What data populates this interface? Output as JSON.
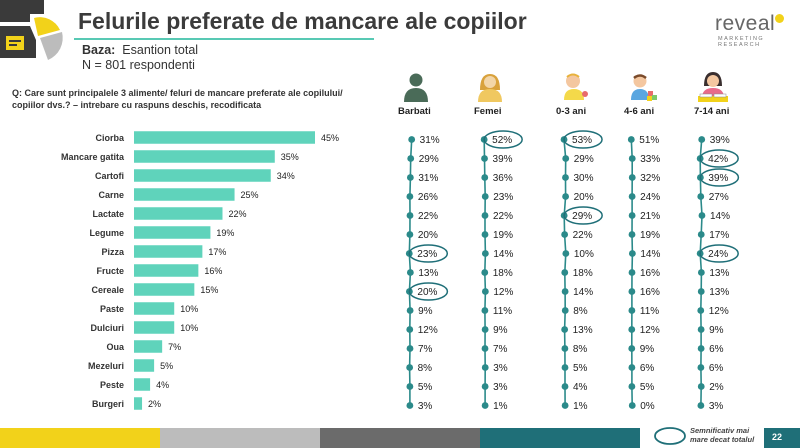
{
  "header": {
    "title": "Felurile preferate de mancare ale copiilor",
    "base_label": "Baza:",
    "base_value": "Esantion total",
    "base_n": "N = 801 respondenti"
  },
  "logo": {
    "word": "reveal",
    "sub1": "MARKETING",
    "sub2": "RESEARCH"
  },
  "question": "Q: Care sunt principalele 3 alimente/ feluri de mancare preferate ale copilului/ copiilor dvs.? – intrebare cu raspuns deschis, recodificata",
  "legend_note": [
    "Semnificativ mai",
    "mare decat totalul"
  ],
  "page_number": "22",
  "colors": {
    "bar": "#5fd3bb",
    "line": "#2b8a8a",
    "highlight": "#1f6f78",
    "footer": [
      "#f2d21a",
      "#bcbcbc",
      "#6b6b6b",
      "#1f6f78"
    ]
  },
  "chart_data": {
    "type": "bar",
    "orientation": "horizontal",
    "value_suffix": "%",
    "categories": [
      "Ciorba",
      "Mancare gatita",
      "Cartofi",
      "Carne",
      "Lactate",
      "Legume",
      "Pizza",
      "Fructe",
      "Cereale",
      "Paste",
      "Dulciuri",
      "Oua",
      "Mezeluri",
      "Peste",
      "Burgeri"
    ],
    "values": [
      45,
      35,
      34,
      25,
      22,
      19,
      17,
      16,
      15,
      10,
      10,
      7,
      5,
      4,
      2
    ],
    "xlim": [
      0,
      50
    ],
    "segments": [
      {
        "name": "Barbati",
        "icon": "man-icon",
        "values": [
          31,
          29,
          31,
          26,
          22,
          20,
          23,
          13,
          20,
          9,
          12,
          7,
          8,
          5,
          3
        ],
        "highlight": [
          false,
          false,
          false,
          false,
          false,
          false,
          true,
          false,
          true,
          false,
          false,
          false,
          false,
          false,
          false
        ]
      },
      {
        "name": "Femei",
        "icon": "woman-icon",
        "values": [
          52,
          39,
          36,
          23,
          22,
          19,
          14,
          18,
          12,
          11,
          9,
          7,
          3,
          3,
          1
        ],
        "highlight": [
          true,
          false,
          false,
          false,
          false,
          false,
          false,
          false,
          false,
          false,
          false,
          false,
          false,
          false,
          false
        ]
      },
      {
        "name": "0-3 ani",
        "icon": "baby-icon",
        "values": [
          53,
          29,
          30,
          20,
          29,
          22,
          10,
          18,
          14,
          8,
          13,
          8,
          5,
          4,
          1
        ],
        "highlight": [
          true,
          false,
          false,
          false,
          true,
          false,
          false,
          false,
          false,
          false,
          false,
          false,
          false,
          false,
          false
        ]
      },
      {
        "name": "4-6 ani",
        "icon": "toddler-icon",
        "values": [
          51,
          33,
          32,
          24,
          21,
          19,
          14,
          16,
          16,
          11,
          12,
          9,
          6,
          5,
          0
        ],
        "highlight": [
          false,
          false,
          false,
          false,
          false,
          false,
          false,
          false,
          false,
          false,
          false,
          false,
          false,
          false,
          false
        ]
      },
      {
        "name": "7-14 ani",
        "icon": "schoolchild-icon",
        "values": [
          39,
          42,
          39,
          27,
          14,
          17,
          24,
          13,
          13,
          12,
          9,
          6,
          6,
          2,
          3
        ],
        "highlight": [
          false,
          true,
          true,
          false,
          false,
          false,
          true,
          false,
          false,
          false,
          false,
          false,
          false,
          false,
          false
        ]
      }
    ]
  }
}
